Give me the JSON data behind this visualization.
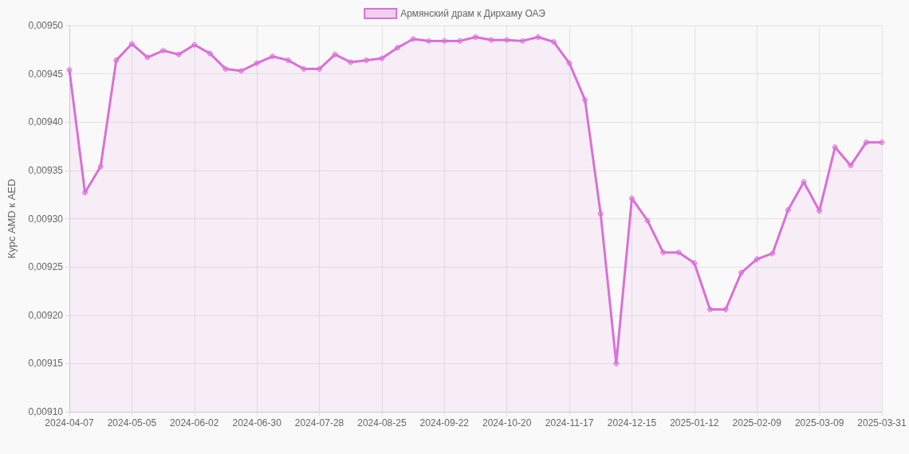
{
  "chart_data": {
    "type": "area",
    "ylabel": "Курс AMD к AED",
    "legend": "top",
    "grid": true,
    "marker": "circle",
    "line_style": "solid",
    "categories": [
      "2024-04-07",
      null,
      null,
      null,
      "2024-05-05",
      null,
      null,
      null,
      "2024-06-02",
      null,
      null,
      null,
      "2024-06-30",
      null,
      null,
      null,
      "2024-07-28",
      null,
      null,
      null,
      "2024-08-25",
      null,
      null,
      null,
      "2024-09-22",
      null,
      null,
      null,
      "2024-10-20",
      null,
      null,
      null,
      "2024-11-17",
      null,
      null,
      null,
      "2024-12-15",
      null,
      null,
      null,
      "2025-01-12",
      null,
      null,
      null,
      "2025-02-09",
      null,
      null,
      null,
      "2025-03-09",
      null,
      null,
      null,
      "2025-03-31"
    ],
    "ylim": [
      0.0091,
      0.0095
    ],
    "yticks": [
      {
        "value": 0.0091,
        "label": "0,00910"
      },
      {
        "value": 0.00915,
        "label": "0,00915"
      },
      {
        "value": 0.0092,
        "label": "0,00920"
      },
      {
        "value": 0.00925,
        "label": "0,00925"
      },
      {
        "value": 0.0093,
        "label": "0,00930"
      },
      {
        "value": 0.00935,
        "label": "0,00935"
      },
      {
        "value": 0.0094,
        "label": "0,00940"
      },
      {
        "value": 0.00945,
        "label": "0,00945"
      },
      {
        "value": 0.0095,
        "label": "0,00950"
      }
    ],
    "series": [
      {
        "name": "Армянский драм к Дирхаму ОАЭ",
        "color": "#da70d6",
        "values": [
          0.009454,
          0.009327,
          0.009354,
          0.009464,
          0.009481,
          0.009467,
          0.009474,
          0.00947,
          0.00948,
          0.009471,
          0.009455,
          0.009453,
          0.009461,
          0.009468,
          0.009464,
          0.009455,
          0.009455,
          0.00947,
          0.009462,
          0.009464,
          0.009466,
          0.009477,
          0.009486,
          0.009484,
          0.009484,
          0.009484,
          0.009488,
          0.009485,
          0.009485,
          0.009484,
          0.009488,
          0.009483,
          0.009461,
          0.009423,
          0.009305,
          0.00915,
          0.009321,
          0.009298,
          0.009265,
          0.009265,
          0.009254,
          0.009206,
          0.009206,
          0.009244,
          0.009258,
          0.009264,
          0.009309,
          0.009338,
          0.009308,
          0.009374,
          0.009355,
          0.009379,
          0.009379
        ]
      }
    ]
  }
}
